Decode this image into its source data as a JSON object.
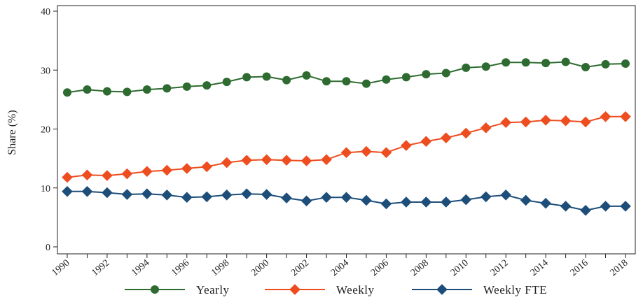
{
  "chart_data": {
    "type": "line",
    "title": "",
    "xlabel": "",
    "ylabel": "Share (%)",
    "xlim": [
      1990,
      2018
    ],
    "ylim": [
      0,
      40
    ],
    "yticks": [
      0,
      10,
      20,
      30,
      40
    ],
    "xtick_labels": [
      "1990",
      "1992",
      "1994",
      "1996",
      "1998",
      "2000",
      "2002",
      "2004",
      "2006",
      "2008",
      "2010",
      "2012",
      "2014",
      "2016",
      "2018"
    ],
    "grid": false,
    "legend_position": "bottom",
    "x": [
      1990,
      1991,
      1992,
      1993,
      1994,
      1995,
      1996,
      1997,
      1998,
      1999,
      2000,
      2001,
      2002,
      2003,
      2004,
      2005,
      2006,
      2007,
      2008,
      2009,
      2010,
      2011,
      2012,
      2013,
      2014,
      2015,
      2016,
      2017,
      2018
    ],
    "series": [
      {
        "name": "Yearly",
        "color": "#2e6b30",
        "marker": "circle",
        "values": [
          26.2,
          26.7,
          26.4,
          26.3,
          26.7,
          26.9,
          27.2,
          27.4,
          28.0,
          28.8,
          28.9,
          28.3,
          29.1,
          28.1,
          28.1,
          27.7,
          28.4,
          28.8,
          29.3,
          29.5,
          30.4,
          30.6,
          31.3,
          31.3,
          31.2,
          31.4,
          30.5,
          31.0,
          31.1
        ]
      },
      {
        "name": "Weekly",
        "color": "#ee4d1f",
        "marker": "diamond",
        "values": [
          11.8,
          12.2,
          12.1,
          12.4,
          12.8,
          13.0,
          13.3,
          13.6,
          14.3,
          14.7,
          14.8,
          14.7,
          14.6,
          14.8,
          16.0,
          16.2,
          16.0,
          17.2,
          17.9,
          18.5,
          19.3,
          20.2,
          21.1,
          21.2,
          21.5,
          21.4,
          21.2,
          22.1,
          22.1
        ]
      },
      {
        "name": "Weekly FTE",
        "color": "#1d4e7a",
        "marker": "diamond",
        "values": [
          9.4,
          9.4,
          9.2,
          8.9,
          9.0,
          8.8,
          8.4,
          8.5,
          8.8,
          9.0,
          8.9,
          8.3,
          7.8,
          8.4,
          8.4,
          7.9,
          7.3,
          7.6,
          7.6,
          7.6,
          8.0,
          8.5,
          8.8,
          7.9,
          7.4,
          6.9,
          6.2,
          6.9,
          6.9
        ]
      }
    ]
  }
}
